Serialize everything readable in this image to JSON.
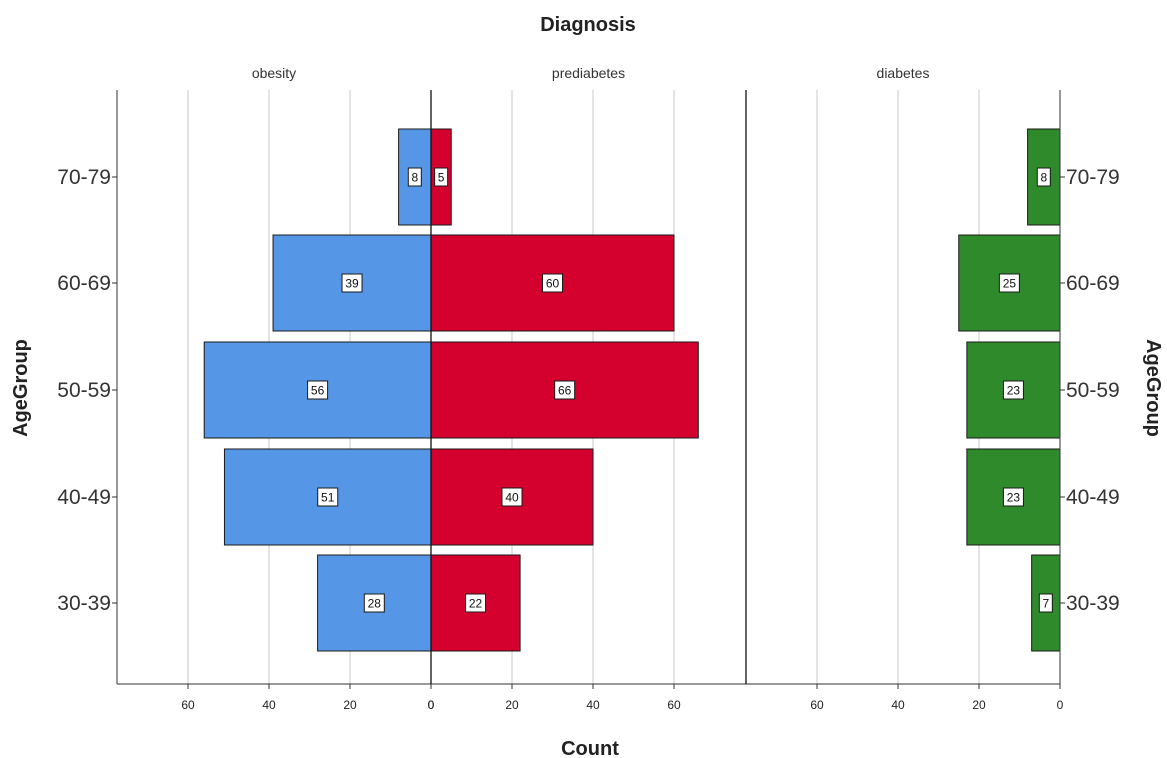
{
  "chart_data": {
    "type": "bar",
    "title": "Diagnosis",
    "xlabel": "Count",
    "ylabel": "AgeGroup",
    "categories": [
      "70-79",
      "60-69",
      "50-59",
      "40-49",
      "30-39"
    ],
    "panels": [
      {
        "name": "obesity",
        "direction": "left",
        "ticks": [
          60,
          40,
          20,
          0
        ],
        "xlim": [
          0,
          78
        ]
      },
      {
        "name": "prediabetes",
        "direction": "right",
        "ticks": [
          0,
          20,
          40,
          60
        ],
        "xlim": [
          0,
          78
        ]
      },
      {
        "name": "diabetes",
        "direction": "left",
        "ticks": [
          60,
          40,
          20,
          0
        ],
        "xlim": [
          0,
          78
        ]
      }
    ],
    "series": [
      {
        "name": "obesity",
        "color": "#5597e6",
        "values": [
          8,
          39,
          56,
          51,
          28
        ]
      },
      {
        "name": "prediabetes",
        "color": "#d4002e",
        "values": [
          5,
          60,
          66,
          40,
          22
        ]
      },
      {
        "name": "diabetes",
        "color": "#2e8a2b",
        "values": [
          8,
          25,
          23,
          23,
          7
        ]
      }
    ],
    "grid": true,
    "legend": "none"
  }
}
